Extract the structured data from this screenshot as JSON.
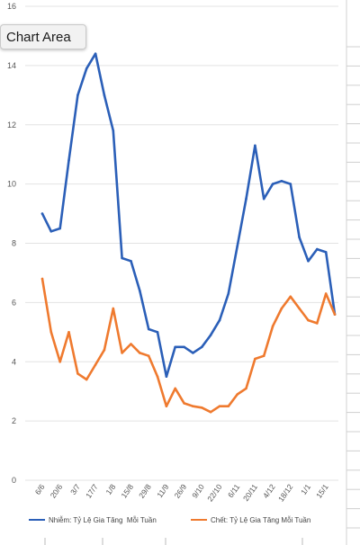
{
  "window": {
    "tooltip_text": "Chart Area"
  },
  "colors": {
    "series_1": "#2b5fb8",
    "series_2": "#ef7a2f",
    "gridline": "#e3e3e3",
    "sheet_grid": "#d0d0d0"
  },
  "chart_data": {
    "type": "line",
    "title": "",
    "xlabel": "",
    "ylabel": "",
    "ylim": [
      0,
      16
    ],
    "y_ticks": [
      0,
      2,
      4,
      6,
      8,
      10,
      12,
      14,
      16
    ],
    "x_tick_labels": [
      "6/6",
      "20/6",
      "3/7",
      "17/7",
      "1/8",
      "15/8",
      "29/8",
      "11/9",
      "26/9",
      "9/10",
      "22/10",
      "6/11",
      "20/11",
      "4/12",
      "18/12",
      "1/1",
      "15/1"
    ],
    "x_tick_positions": [
      0,
      2,
      4,
      6,
      8,
      10,
      12,
      14,
      16,
      18,
      20,
      22,
      24,
      26,
      28,
      30,
      32
    ],
    "x": [
      0,
      1,
      2,
      3,
      4,
      5,
      6,
      7,
      8,
      9,
      10,
      11,
      12,
      13,
      14,
      15,
      16,
      17,
      18,
      19,
      20,
      21,
      22,
      23,
      24,
      25,
      26,
      27,
      28,
      29,
      30,
      31,
      32,
      33
    ],
    "series": [
      {
        "name": "Nhiễm: Tỷ Lệ Gia Tăng  Mỗi Tuần",
        "values": [
          9.0,
          8.4,
          8.5,
          10.8,
          13.0,
          13.9,
          14.4,
          13.0,
          11.8,
          7.5,
          7.4,
          6.4,
          5.1,
          5.0,
          3.5,
          4.5,
          4.5,
          4.3,
          4.5,
          4.9,
          5.4,
          6.3,
          7.9,
          9.5,
          11.3,
          9.5,
          10.0,
          10.1,
          10.0,
          8.2,
          7.4,
          7.8,
          7.7,
          5.6
        ],
        "legend_label": "Nhiễm: Tỷ Lệ Gia Tăng  Mỗi Tuần"
      },
      {
        "name": "Chết: Tỷ Lệ Gia Tăng Mỗi Tuần",
        "values": [
          6.8,
          5.0,
          4.0,
          5.0,
          3.6,
          3.4,
          3.9,
          4.4,
          5.8,
          4.3,
          4.6,
          4.3,
          4.2,
          3.5,
          2.5,
          3.1,
          2.6,
          2.5,
          2.45,
          2.3,
          2.5,
          2.5,
          2.9,
          3.1,
          4.1,
          4.2,
          5.2,
          5.8,
          6.2,
          5.8,
          5.4,
          5.3,
          6.3,
          5.6
        ],
        "legend_label": "Chết: Tỷ Lệ Gia Tăng Mỗi Tuần"
      }
    ],
    "grid": true,
    "legend_position": "bottom"
  }
}
